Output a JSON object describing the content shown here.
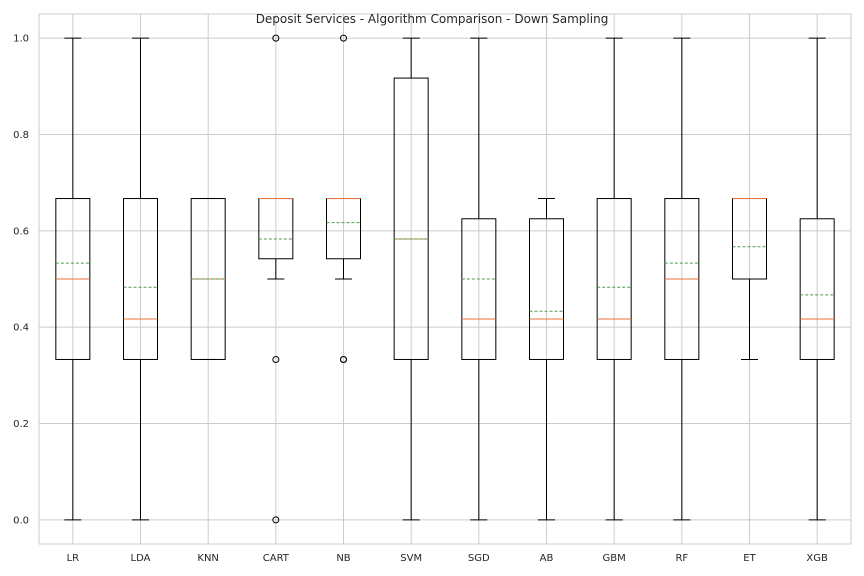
{
  "chart_data": {
    "type": "box",
    "title": "Deposit Services - Algorithm Comparison - Down Sampling",
    "xlabel": "",
    "ylabel": "",
    "ylim": [
      -0.05,
      1.05
    ],
    "yticks": [
      "0.0",
      "0.2",
      "0.4",
      "0.6",
      "0.8",
      "1.0"
    ],
    "grid": true,
    "colors": {
      "box": "#000000",
      "median": "#e8743b",
      "mean": "#4f9a4f",
      "grid": "#cccccc",
      "frame": "#cccccc"
    },
    "categories": [
      "LR",
      "LDA",
      "KNN",
      "CART",
      "NB",
      "SVM",
      "SGD",
      "AB",
      "GBM",
      "RF",
      "ET",
      "XGB"
    ],
    "boxes": [
      {
        "name": "LR",
        "whisker_low": 0.0,
        "q1": 0.333,
        "median": 0.5,
        "mean": 0.533,
        "q3": 0.667,
        "whisker_high": 1.0,
        "outliers": []
      },
      {
        "name": "LDA",
        "whisker_low": 0.0,
        "q1": 0.333,
        "median": 0.417,
        "mean": 0.483,
        "q3": 0.667,
        "whisker_high": 1.0,
        "outliers": []
      },
      {
        "name": "KNN",
        "whisker_low": 0.333,
        "q1": 0.333,
        "median": 0.5,
        "mean": 0.5,
        "q3": 0.667,
        "whisker_high": 0.667,
        "outliers": []
      },
      {
        "name": "CART",
        "whisker_low": 0.5,
        "q1": 0.542,
        "median": 0.667,
        "mean": 0.583,
        "q3": 0.667,
        "whisker_high": 0.667,
        "outliers": [
          1.0,
          0.333,
          0.0
        ]
      },
      {
        "name": "NB",
        "whisker_low": 0.5,
        "q1": 0.542,
        "median": 0.667,
        "mean": 0.617,
        "q3": 0.667,
        "whisker_high": 0.667,
        "outliers": [
          1.0,
          0.333,
          0.333
        ]
      },
      {
        "name": "SVM",
        "whisker_low": 0.0,
        "q1": 0.333,
        "median": 0.583,
        "mean": 0.583,
        "q3": 0.917,
        "whisker_high": 1.0,
        "outliers": []
      },
      {
        "name": "SGD",
        "whisker_low": 0.0,
        "q1": 0.333,
        "median": 0.417,
        "mean": 0.5,
        "q3": 0.625,
        "whisker_high": 1.0,
        "outliers": []
      },
      {
        "name": "AB",
        "whisker_low": 0.0,
        "q1": 0.333,
        "median": 0.417,
        "mean": 0.433,
        "q3": 0.625,
        "whisker_high": 0.667,
        "outliers": []
      },
      {
        "name": "GBM",
        "whisker_low": 0.0,
        "q1": 0.333,
        "median": 0.417,
        "mean": 0.483,
        "q3": 0.667,
        "whisker_high": 1.0,
        "outliers": []
      },
      {
        "name": "RF",
        "whisker_low": 0.0,
        "q1": 0.333,
        "median": 0.5,
        "mean": 0.533,
        "q3": 0.667,
        "whisker_high": 1.0,
        "outliers": []
      },
      {
        "name": "ET",
        "whisker_low": 0.333,
        "q1": 0.5,
        "median": 0.667,
        "mean": 0.567,
        "q3": 0.667,
        "whisker_high": 0.667,
        "outliers": []
      },
      {
        "name": "XGB",
        "whisker_low": 0.0,
        "q1": 0.333,
        "median": 0.417,
        "mean": 0.467,
        "q3": 0.625,
        "whisker_high": 1.0,
        "outliers": []
      }
    ]
  }
}
